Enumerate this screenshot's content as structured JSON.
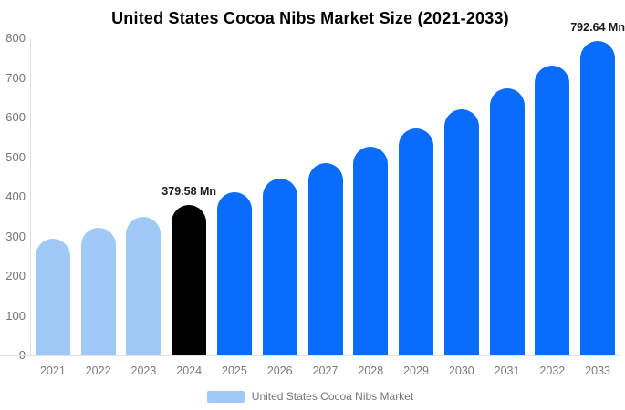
{
  "chart_data": {
    "type": "bar",
    "title": "United States Cocoa Nibs Market Size (2021-2033)",
    "categories": [
      "2021",
      "2022",
      "2023",
      "2024",
      "2025",
      "2026",
      "2027",
      "2028",
      "2029",
      "2030",
      "2031",
      "2032",
      "2033"
    ],
    "values": [
      295,
      322,
      350,
      379.58,
      412,
      447,
      485,
      527,
      572,
      620,
      673,
      731,
      792.64
    ],
    "unit": "Mn",
    "ylim": [
      0,
      800
    ],
    "yticks": [
      0,
      100,
      200,
      300,
      400,
      500,
      600,
      700,
      800
    ],
    "grid": false,
    "bar_styles": [
      "historical",
      "historical",
      "historical",
      "base_year",
      "forecast",
      "forecast",
      "forecast",
      "forecast",
      "forecast",
      "forecast",
      "forecast",
      "forecast",
      "forecast"
    ],
    "palette": {
      "historical": "#a0c9f8",
      "base_year": "#000000",
      "forecast": "#0a6cfb"
    },
    "axis_color": "#e2e2e2",
    "tick_label_color": "#757575",
    "annotations": [
      {
        "category": "2024",
        "text": "379.58 Mn"
      },
      {
        "category": "2033",
        "text": "792.64 Mn"
      }
    ],
    "legend": {
      "position": "bottom",
      "label": "United States Cocoa Nibs Market",
      "swatch_color": "#a0c9f8"
    }
  }
}
